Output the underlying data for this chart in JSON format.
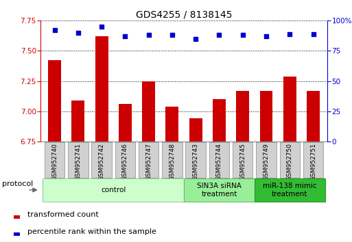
{
  "title": "GDS4255 / 8138145",
  "samples": [
    "GSM952740",
    "GSM952741",
    "GSM952742",
    "GSM952746",
    "GSM952747",
    "GSM952748",
    "GSM952743",
    "GSM952744",
    "GSM952745",
    "GSM952749",
    "GSM952750",
    "GSM952751"
  ],
  "bar_values": [
    7.42,
    7.09,
    7.62,
    7.06,
    7.25,
    7.04,
    6.94,
    7.1,
    7.17,
    7.17,
    7.29,
    7.17
  ],
  "dot_values": [
    92,
    90,
    95,
    87,
    88,
    88,
    85,
    88,
    88,
    87,
    89,
    89
  ],
  "ylim_left": [
    6.75,
    7.75
  ],
  "ylim_right": [
    0,
    100
  ],
  "yticks_left": [
    6.75,
    7.0,
    7.25,
    7.5,
    7.75
  ],
  "yticks_right": [
    0,
    25,
    50,
    75,
    100
  ],
  "bar_color": "#cc0000",
  "dot_color": "#0000cc",
  "bar_bottom": 6.75,
  "groups": [
    {
      "label": "control",
      "start": 0,
      "end": 6,
      "color": "#ccffcc",
      "border": "#99cc99"
    },
    {
      "label": "SIN3A siRNA\ntreatment",
      "start": 6,
      "end": 9,
      "color": "#99ee99",
      "border": "#66bb66"
    },
    {
      "label": "miR-138 mimic\ntreatment",
      "start": 9,
      "end": 12,
      "color": "#33bb33",
      "border": "#229922"
    }
  ],
  "legend_items": [
    {
      "label": "transformed count",
      "color": "#cc0000"
    },
    {
      "label": "percentile rank within the sample",
      "color": "#0000cc"
    }
  ],
  "protocol_label": "protocol",
  "background_color": "#ffffff",
  "title_fontsize": 10,
  "tick_fontsize": 7.5,
  "label_fontsize": 6.5,
  "group_fontsize": 7.5,
  "legend_fontsize": 8,
  "axis_color_left": "#cc0000",
  "axis_color_right": "#0000cc",
  "sample_box_color": "#d0d0d0",
  "sample_box_border": "#888888"
}
